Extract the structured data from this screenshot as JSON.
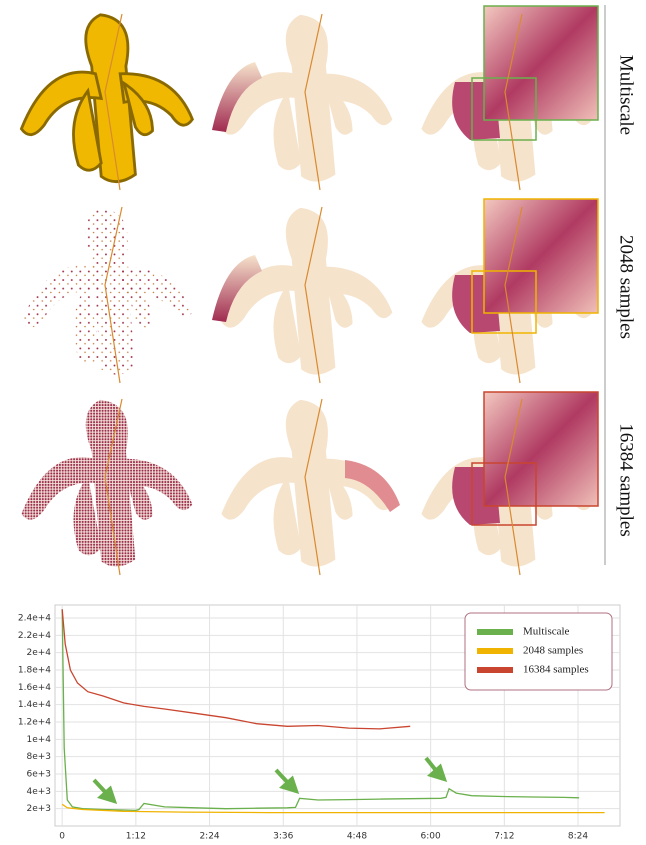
{
  "figure": {
    "row_labels": [
      "Multiscale",
      "2048 samples",
      "16384 samples"
    ]
  },
  "chart_data": {
    "type": "line",
    "xlim": [
      -7,
      545
    ],
    "ylim": [
      0,
      25500
    ],
    "xticks": [
      0,
      {
        "value": 72,
        "label": "1:12"
      },
      {
        "value": 144,
        "label": "2:24"
      },
      {
        "value": 216,
        "label": "3:36"
      },
      {
        "value": 288,
        "label": "4:48"
      },
      {
        "value": 360,
        "label": "6:00"
      },
      {
        "value": 432,
        "label": "7:12"
      },
      {
        "value": 504,
        "label": "8:24"
      }
    ],
    "yticks": [
      {
        "value": 2000,
        "label": "2e+3"
      },
      {
        "value": 4000,
        "label": "4e+3"
      },
      {
        "value": 6000,
        "label": "6e+3"
      },
      {
        "value": 8000,
        "label": "8e+3"
      },
      {
        "value": 10000,
        "label": "1e+4"
      },
      {
        "value": 12000,
        "label": "1.2e+4"
      },
      {
        "value": 14000,
        "label": "1.4e+4"
      },
      {
        "value": 16000,
        "label": "1.6e+4"
      },
      {
        "value": 18000,
        "label": "1.8e+4"
      },
      {
        "value": 20000,
        "label": "2e+4"
      },
      {
        "value": 22000,
        "label": "2.2e+4"
      },
      {
        "value": 24000,
        "label": "2.4e+4"
      }
    ],
    "grid": true,
    "legend": "upper-right",
    "series": [
      {
        "name": "Multiscale",
        "color": "#6ab04c",
        "x": [
          0,
          2,
          5,
          10,
          20,
          40,
          60,
          72,
          75,
          80,
          100,
          130,
          160,
          190,
          220,
          228,
          232,
          250,
          280,
          310,
          340,
          370,
          375,
          378,
          385,
          400,
          430,
          460,
          490,
          505
        ],
        "values": [
          25000,
          9000,
          3000,
          2200,
          2000,
          1900,
          1850,
          1800,
          1900,
          2600,
          2200,
          2100,
          2000,
          2050,
          2100,
          2150,
          3200,
          3000,
          3050,
          3100,
          3150,
          3200,
          3300,
          4300,
          3800,
          3500,
          3400,
          3350,
          3300,
          3250
        ]
      },
      {
        "name": "2048 samples",
        "color": "#f0b400",
        "x": [
          0,
          5,
          20,
          60,
          120,
          200,
          280,
          360,
          440,
          530
        ],
        "values": [
          2500,
          2100,
          1900,
          1700,
          1600,
          1550,
          1550,
          1550,
          1550,
          1550
        ]
      },
      {
        "name": "16384 samples",
        "color": "#c9452f",
        "x": [
          0,
          3,
          8,
          15,
          25,
          40,
          60,
          80,
          100,
          130,
          160,
          190,
          220,
          250,
          280,
          310,
          340
        ],
        "values": [
          25000,
          21000,
          18000,
          16500,
          15500,
          15000,
          14200,
          13800,
          13500,
          13000,
          12500,
          11800,
          11500,
          11600,
          11300,
          11200,
          11500
        ]
      }
    ]
  }
}
